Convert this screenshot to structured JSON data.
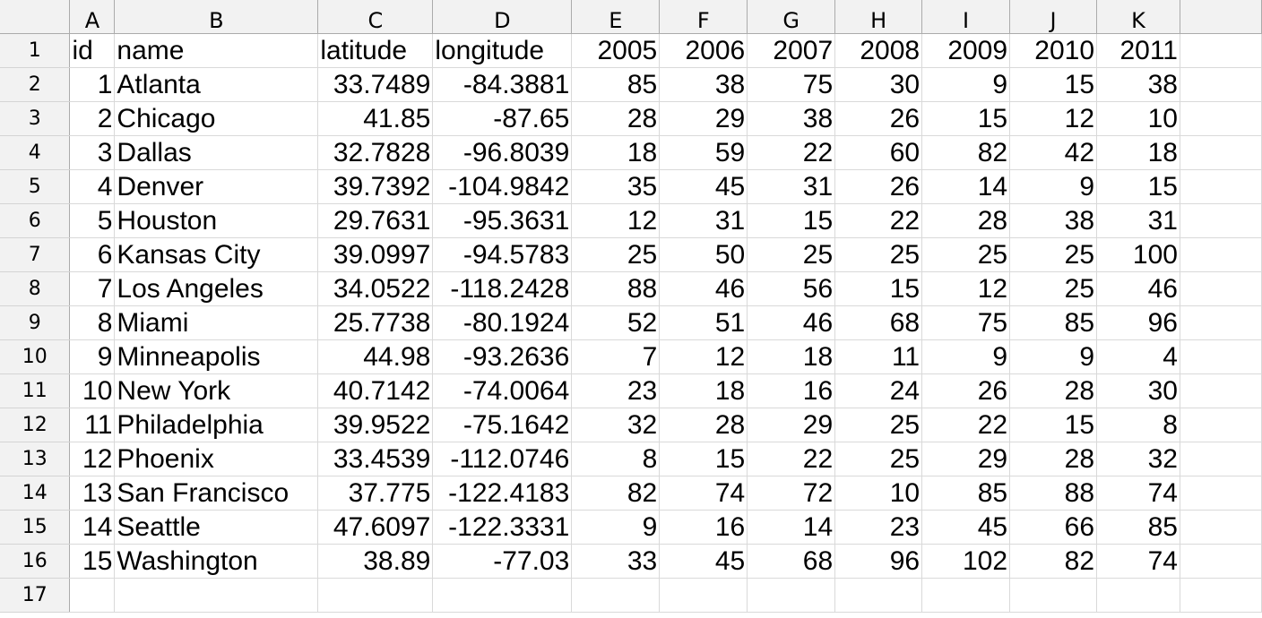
{
  "columns": [
    "A",
    "B",
    "C",
    "D",
    "E",
    "F",
    "G",
    "H",
    "I",
    "J",
    "K"
  ],
  "row_numbers": [
    "1",
    "2",
    "3",
    "4",
    "5",
    "6",
    "7",
    "8",
    "9",
    "10",
    "11",
    "12",
    "13",
    "14",
    "15",
    "16",
    "17"
  ],
  "rows": [
    [
      "id",
      "name",
      "latitude",
      "longitude",
      "2005",
      "2006",
      "2007",
      "2008",
      "2009",
      "2010",
      "2011"
    ],
    [
      "1",
      "Atlanta",
      "33.7489",
      "-84.3881",
      "85",
      "38",
      "75",
      "30",
      "9",
      "15",
      "38"
    ],
    [
      "2",
      "Chicago",
      "41.85",
      "-87.65",
      "28",
      "29",
      "38",
      "26",
      "15",
      "12",
      "10"
    ],
    [
      "3",
      "Dallas",
      "32.7828",
      "-96.8039",
      "18",
      "59",
      "22",
      "60",
      "82",
      "42",
      "18"
    ],
    [
      "4",
      "Denver",
      "39.7392",
      "-104.9842",
      "35",
      "45",
      "31",
      "26",
      "14",
      "9",
      "15"
    ],
    [
      "5",
      "Houston",
      "29.7631",
      "-95.3631",
      "12",
      "31",
      "15",
      "22",
      "28",
      "38",
      "31"
    ],
    [
      "6",
      "Kansas City",
      "39.0997",
      "-94.5783",
      "25",
      "50",
      "25",
      "25",
      "25",
      "25",
      "100"
    ],
    [
      "7",
      "Los Angeles",
      "34.0522",
      "-118.2428",
      "88",
      "46",
      "56",
      "15",
      "12",
      "25",
      "46"
    ],
    [
      "8",
      "Miami",
      "25.7738",
      "-80.1924",
      "52",
      "51",
      "46",
      "68",
      "75",
      "85",
      "96"
    ],
    [
      "9",
      "Minneapolis",
      "44.98",
      "-93.2636",
      "7",
      "12",
      "18",
      "11",
      "9",
      "9",
      "4"
    ],
    [
      "10",
      "New York",
      "40.7142",
      "-74.0064",
      "23",
      "18",
      "16",
      "24",
      "26",
      "28",
      "30"
    ],
    [
      "11",
      "Philadelphia",
      "39.9522",
      "-75.1642",
      "32",
      "28",
      "29",
      "25",
      "22",
      "15",
      "8"
    ],
    [
      "12",
      "Phoenix",
      "33.4539",
      "-112.0746",
      "8",
      "15",
      "22",
      "25",
      "29",
      "28",
      "32"
    ],
    [
      "13",
      "San Francisco",
      "37.775",
      "-122.4183",
      "82",
      "74",
      "72",
      "10",
      "85",
      "88",
      "74"
    ],
    [
      "14",
      "Seattle",
      "47.6097",
      "-122.3331",
      "9",
      "16",
      "14",
      "23",
      "45",
      "66",
      "85"
    ],
    [
      "15",
      "Washington",
      "38.89",
      "-77.03",
      "33",
      "45",
      "68",
      "96",
      "102",
      "82",
      "74"
    ],
    [
      "",
      "",
      "",
      "",
      "",
      "",
      "",
      "",
      "",
      "",
      ""
    ]
  ],
  "colors": {
    "header_background": "#f2f2f2",
    "header_border": "#ababab",
    "grid_line": "#d9d9d9",
    "cell_background": "#ffffff"
  }
}
